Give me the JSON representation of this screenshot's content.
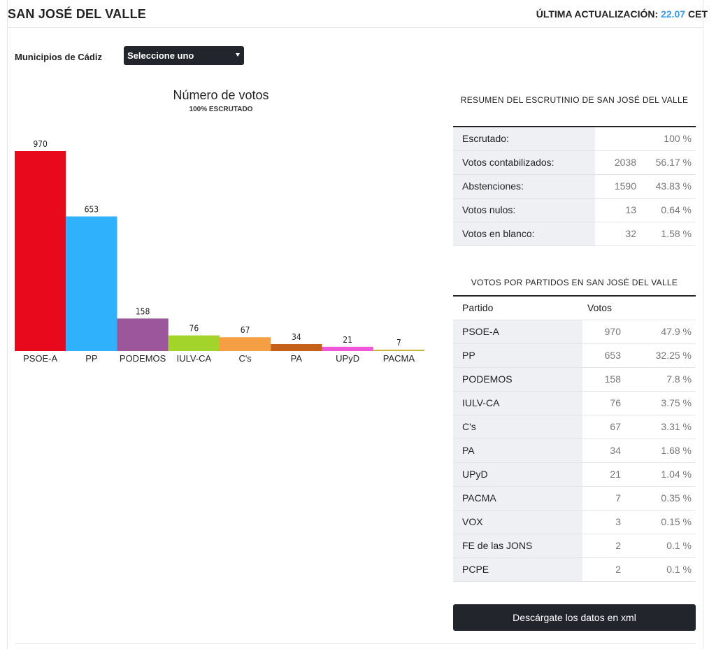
{
  "header": {
    "title": "SAN JOSÉ DEL VALLE",
    "update_label": "ÚLTIMA ACTUALIZACIÓN:",
    "update_time": "22.07",
    "update_tz": "CET"
  },
  "filter": {
    "label": "Municipios de Cádiz",
    "select_value": "Seleccione uno"
  },
  "chart_data": {
    "type": "bar",
    "title": "Número de votos",
    "subtitle": "100% ESCRUTADO",
    "categories": [
      "PSOE-A",
      "PP",
      "PODEMOS",
      "IULV-CA",
      "C's",
      "PA",
      "UPyD",
      "PACMA"
    ],
    "values": [
      970,
      653,
      158,
      76,
      67,
      34,
      21,
      7
    ],
    "colors": [
      "#e8091c",
      "#2fb1fb",
      "#9c569c",
      "#a3d42c",
      "#f49f43",
      "#c5601b",
      "#f057db",
      "#cbb83a"
    ],
    "ylim": [
      0,
      970
    ]
  },
  "summary": {
    "title": "RESUMEN DEL ESCRUTINIO DE SAN JOSÉ DEL VALLE",
    "rows": [
      {
        "label": "Escrutado:",
        "count": "",
        "pct": "100 %"
      },
      {
        "label": "Votos contabilizados:",
        "count": "2038",
        "pct": "56.17 %"
      },
      {
        "label": "Abstenciones:",
        "count": "1590",
        "pct": "43.83 %"
      },
      {
        "label": "Votos nulos:",
        "count": "13",
        "pct": "0.64 %"
      },
      {
        "label": "Votos en blanco:",
        "count": "32",
        "pct": "1.58 %"
      }
    ]
  },
  "parties": {
    "title": "VOTOS POR PARTIDOS EN SAN JOSÉ DEL VALLE",
    "col_party": "Partido",
    "col_votes": "Votos",
    "rows": [
      {
        "label": "PSOE-A",
        "count": "970",
        "pct": "47.9 %"
      },
      {
        "label": "PP",
        "count": "653",
        "pct": "32.25 %"
      },
      {
        "label": "PODEMOS",
        "count": "158",
        "pct": "7.8 %"
      },
      {
        "label": "IULV-CA",
        "count": "76",
        "pct": "3.75 %"
      },
      {
        "label": "C's",
        "count": "67",
        "pct": "3.31 %"
      },
      {
        "label": "PA",
        "count": "34",
        "pct": "1.68 %"
      },
      {
        "label": "UPyD",
        "count": "21",
        "pct": "1.04 %"
      },
      {
        "label": "PACMA",
        "count": "7",
        "pct": "0.35 %"
      },
      {
        "label": "VOX",
        "count": "3",
        "pct": "0.15 %"
      },
      {
        "label": "FE de las JONS",
        "count": "2",
        "pct": "0.1 %"
      },
      {
        "label": "PCPE",
        "count": "2",
        "pct": "0.1 %"
      }
    ]
  },
  "download": {
    "label": "Descárgate los datos en xml"
  }
}
